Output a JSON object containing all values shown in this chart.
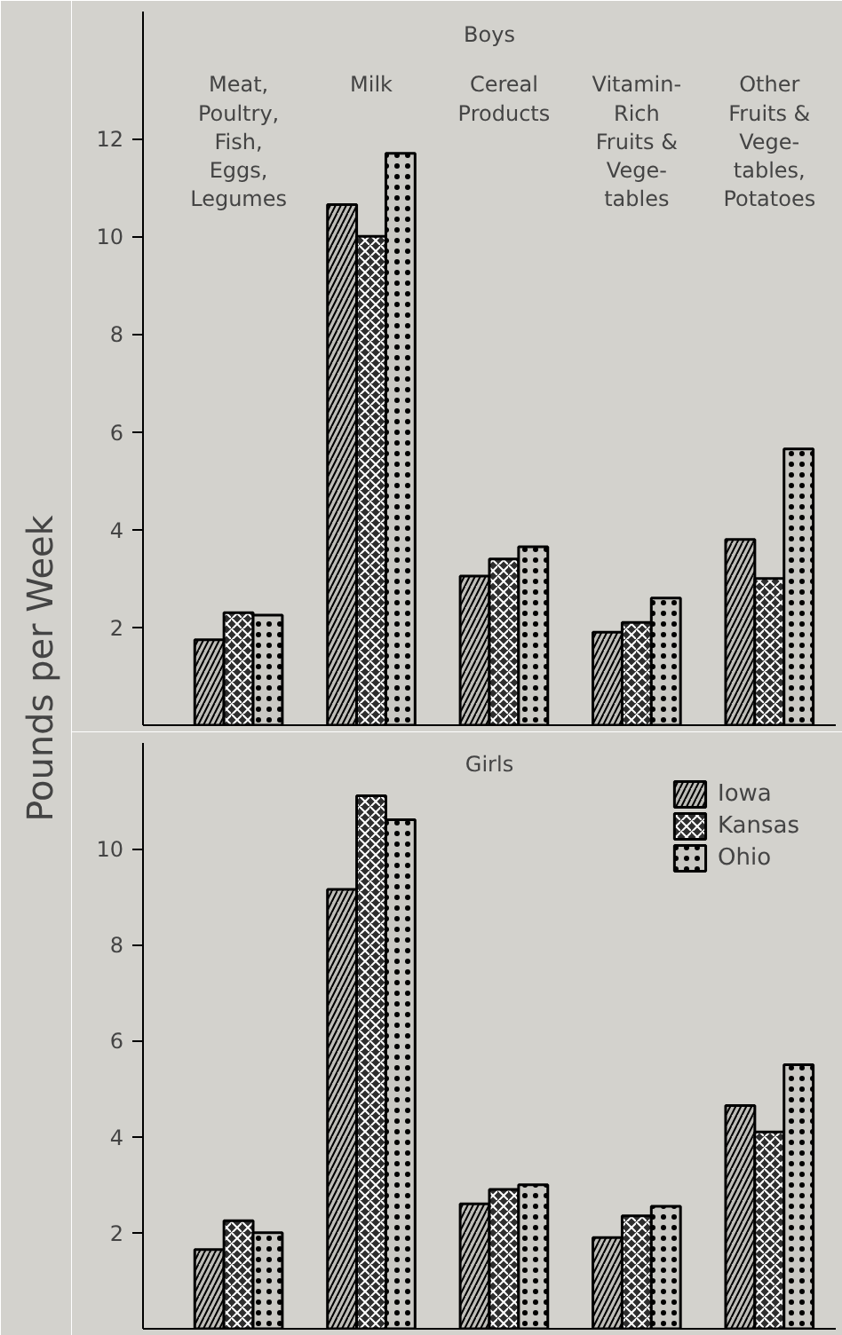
{
  "chart_data": [
    {
      "type": "bar",
      "title": "Boys",
      "ylabel": "Pounds per Week",
      "categories": [
        "Meat,\nPoultry,\nFish,\nEggs,\nLegumes",
        "Milk",
        "Cereal\nProducts",
        "Vitamin-\nRich\nFruits &\nVege-\ntables",
        "Other\nFruits &\nVege-\ntables,\nPotatoes"
      ],
      "series": [
        {
          "color": "#bebdb8",
          "values": [
            1.75,
            10.65,
            3.05,
            1.9,
            3.8
          ]
        },
        {
          "color": "#2e2e2e",
          "values": [
            2.3,
            10.0,
            3.4,
            2.1,
            3.0
          ]
        },
        {
          "color": "#c9c8c3",
          "values": [
            2.25,
            11.7,
            3.65,
            2.6,
            5.65
          ]
        }
      ],
      "ylim": [
        0,
        14.6
      ],
      "yticks": [
        2,
        4,
        6,
        8,
        10,
        12
      ],
      "grid": false,
      "legend": false
    },
    {
      "type": "bar",
      "title": "Girls",
      "categories": [
        null,
        null,
        null,
        null,
        null
      ],
      "series": [
        {
          "name": "Iowa",
          "color": "#bebdb8",
          "values": [
            1.65,
            9.15,
            2.6,
            1.9,
            4.65
          ]
        },
        {
          "name": "Kansas",
          "color": "#2e2e2e",
          "values": [
            2.25,
            11.1,
            2.9,
            2.35,
            4.1
          ]
        },
        {
          "name": "Ohio",
          "color": "#c9c8c3",
          "values": [
            2.0,
            10.6,
            3.0,
            2.55,
            5.5
          ]
        }
      ],
      "ylim": [
        0,
        12.2
      ],
      "yticks": [
        2,
        4,
        6,
        8,
        10
      ],
      "grid": false,
      "legend": "top right"
    }
  ]
}
